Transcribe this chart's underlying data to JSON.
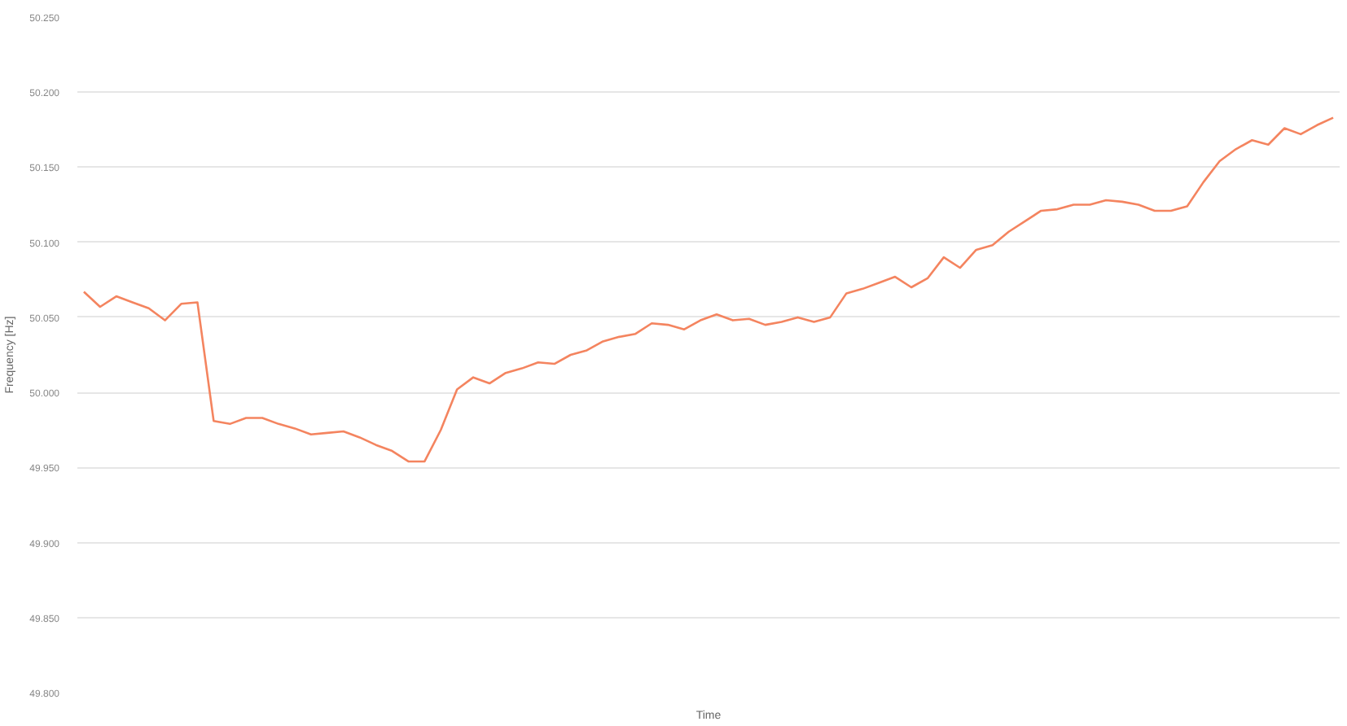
{
  "chart_data": {
    "type": "line",
    "xlabel": "Time",
    "ylabel": "Frequency [Hz]",
    "categories": [
      null,
      null,
      null,
      null,
      null,
      null,
      null,
      null,
      null,
      null,
      null,
      null,
      null,
      null,
      null,
      null,
      null,
      null,
      null,
      null,
      null,
      null,
      null,
      null,
      null,
      null,
      null,
      null,
      null,
      null,
      null,
      null,
      null,
      null,
      null,
      null,
      null,
      null,
      null,
      null,
      null,
      null,
      null,
      null,
      null,
      null,
      null,
      null,
      null,
      null,
      null,
      null,
      null,
      null,
      null,
      null,
      null,
      null,
      null,
      null,
      null,
      null,
      null,
      null,
      null,
      null,
      null,
      null,
      null,
      null,
      null,
      null,
      null,
      null,
      null,
      null,
      null,
      null
    ],
    "series": [
      {
        "color": "#f4845f",
        "values": [
          50.067,
          50.057,
          50.064,
          50.06,
          50.056,
          50.048,
          50.059,
          50.06,
          49.981,
          49.979,
          49.983,
          49.983,
          49.979,
          49.976,
          49.972,
          49.973,
          49.974,
          49.97,
          49.965,
          49.961,
          49.954,
          49.954,
          49.975,
          50.002,
          50.01,
          50.006,
          50.013,
          50.016,
          50.02,
          50.019,
          50.025,
          50.028,
          50.034,
          50.037,
          50.039,
          50.046,
          50.045,
          50.042,
          50.048,
          50.052,
          50.048,
          50.049,
          50.045,
          50.047,
          50.05,
          50.047,
          50.05,
          50.066,
          50.069,
          50.073,
          50.077,
          50.07,
          50.076,
          50.09,
          50.083,
          50.095,
          50.098,
          50.107,
          50.114,
          50.121,
          50.122,
          50.125,
          50.125,
          50.128,
          50.127,
          50.125,
          50.121,
          50.121,
          50.124,
          50.14,
          50.154,
          50.162,
          50.168,
          50.165,
          50.176,
          50.172,
          50.178,
          50.183
        ]
      }
    ],
    "ylim": [
      49.8,
      50.25
    ],
    "yticks": [
      {
        "value": 49.8,
        "label": "49.800"
      },
      {
        "value": 49.85,
        "label": "49.850"
      },
      {
        "value": 49.9,
        "label": "49.900"
      },
      {
        "value": 49.95,
        "label": "49.950"
      },
      {
        "value": 50.0,
        "label": "50.000"
      },
      {
        "value": 50.05,
        "label": "50.050"
      },
      {
        "value": 50.1,
        "label": "50.100"
      },
      {
        "value": 50.15,
        "label": "50.150"
      },
      {
        "value": 50.2,
        "label": "50.200"
      },
      {
        "value": 50.25,
        "label": "50.250"
      }
    ],
    "grid": "y",
    "marker": "none",
    "line_style": "solid"
  }
}
